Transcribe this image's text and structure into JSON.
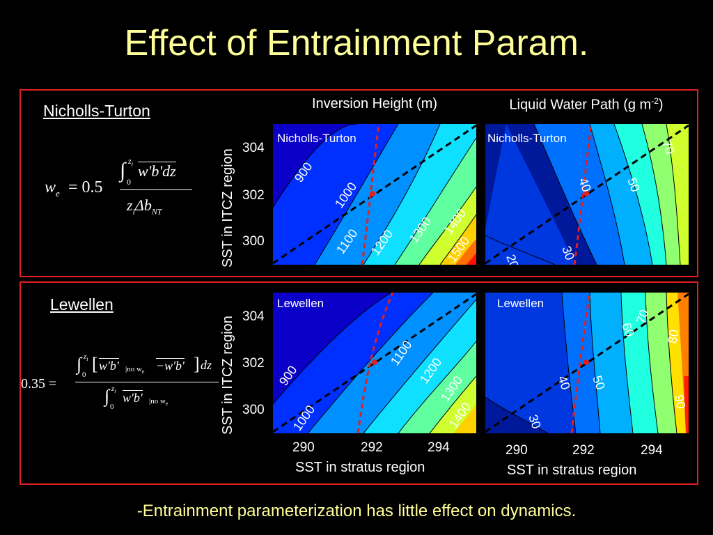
{
  "slide": {
    "title": "Effect of Entrainment Param.",
    "conclusion": "-Entrainment parameterization has little effect on dynamics.",
    "colors": {
      "title": "#ffff99",
      "box": "#e02020",
      "threshold_line": "#e02020",
      "diagonal_line": "#000000"
    }
  },
  "columns": {
    "left_title": "Inversion Height (m)",
    "right_title_main": "Liquid Water Path (g m",
    "right_title_sup": "-2",
    "right_title_end": ")"
  },
  "axes": {
    "ylabel": "SST in ITCZ region",
    "xlabel": "SST in stratus region",
    "yticks": [
      "304",
      "302",
      "300"
    ],
    "xticks": [
      "290",
      "292",
      "294"
    ]
  },
  "rows": [
    {
      "method": "Nicholls-Turton",
      "equation": {
        "lhs": "w",
        "lhs_sub": "e",
        "coef": "= 0.5",
        "numerator": "w'b'dz",
        "denominator": "z",
        "den_sub1": "i",
        "den_mid": "Δb",
        "den_sub2": "NT",
        "int_upper": "z",
        "int_upper_sub": "i",
        "int_lower": "0"
      },
      "panel_left_label": "Nicholls-Turton",
      "panel_right_label": "Nicholls-Turton",
      "contours_left": [
        "900",
        "1000",
        "1100",
        "1200",
        "1300",
        "1400",
        "1500"
      ],
      "contours_right": [
        "20",
        "30",
        "40",
        "50",
        "70"
      ]
    },
    {
      "method": "Lewellen",
      "equation": {
        "lhs": "0.35 =",
        "num_b1": "w'b'",
        "num_b1_sub": "no w",
        "num_b1_sub2": "e",
        "num_minus": "−w'b'",
        "num_dz": "dz",
        "den": "w'b'",
        "den_sub": "no w",
        "den_sub2": "e",
        "int_upper": "z",
        "int_upper_sub": "i",
        "int_lower": "0"
      },
      "panel_left_label": "Lewellen",
      "panel_right_label": "Lewellen",
      "contours_left": [
        "900",
        "1000",
        "1100",
        "1200",
        "1300",
        "1400"
      ],
      "contours_right": [
        "30",
        "40",
        "50",
        "60",
        "70",
        "80",
        "90"
      ]
    }
  ]
}
